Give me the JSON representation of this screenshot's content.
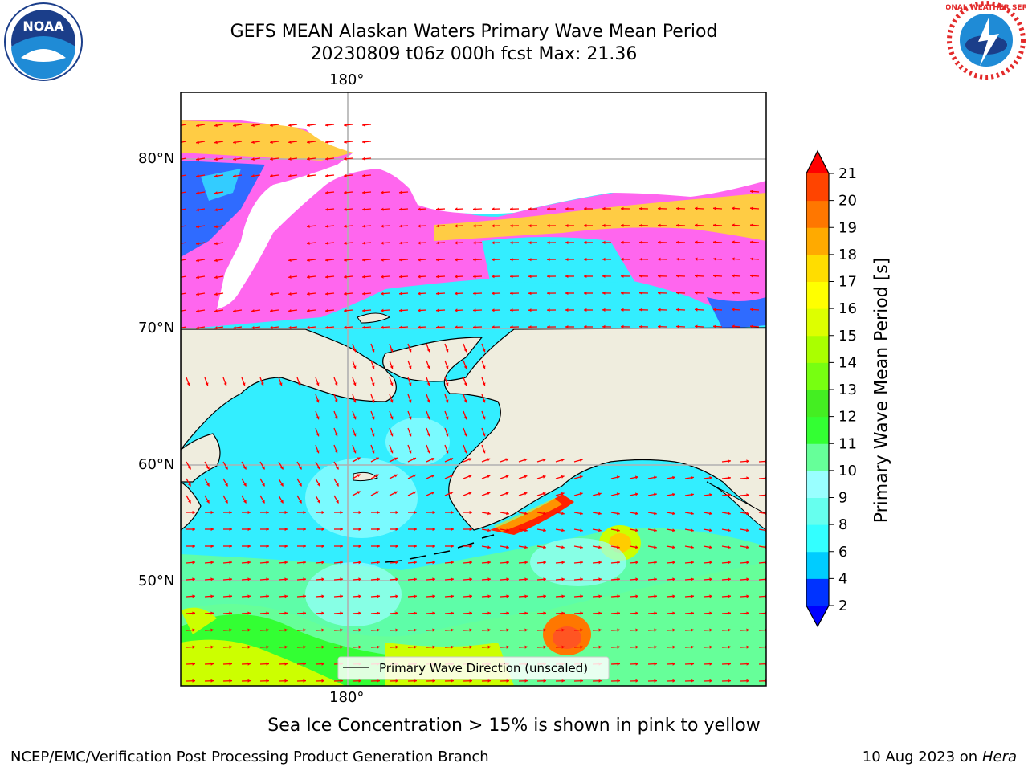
{
  "header": {
    "title_line1": "GEFS MEAN Alaskan Waters Primary Wave Mean Period",
    "title_line2": "20230809 t06z 000h fcst   Max: 21.36"
  },
  "logos": {
    "noaa": {
      "text": "NOAA"
    },
    "nws": {
      "text": "NATIONAL WEATHER SERVICE"
    }
  },
  "map": {
    "lon_label_top": "180°",
    "lon_label_bottom": "180°",
    "lat_labels": [
      "80°N",
      "70°N",
      "60°N",
      "50°N"
    ],
    "legend_text": "Primary Wave Direction (unscaled)"
  },
  "colorbar": {
    "label": "Primary Wave Mean Period [s]",
    "ticks": [
      "2",
      "4",
      "6",
      "8",
      "9",
      "10",
      "11",
      "12",
      "13",
      "14",
      "15",
      "16",
      "17",
      "18",
      "19",
      "20",
      "21"
    ],
    "colors": [
      "#0033ff",
      "#00ccff",
      "#33ffff",
      "#66ffee",
      "#99ffff",
      "#66ff99",
      "#33ff33",
      "#44ee22",
      "#77ff11",
      "#aaff00",
      "#ddff00",
      "#ffff00",
      "#ffdd00",
      "#ffaa00",
      "#ff7700",
      "#ff4400",
      "#ff1100"
    ],
    "under_color": "#0000ff",
    "over_color": "#ff0000"
  },
  "caption": "Sea Ice Concentration > 15% is shown in pink to yellow",
  "footer": {
    "left": "NCEP/EMC/Verification Post Processing Product Generation Branch",
    "right_date": "10 Aug 2023 on",
    "right_host": "Hera"
  }
}
